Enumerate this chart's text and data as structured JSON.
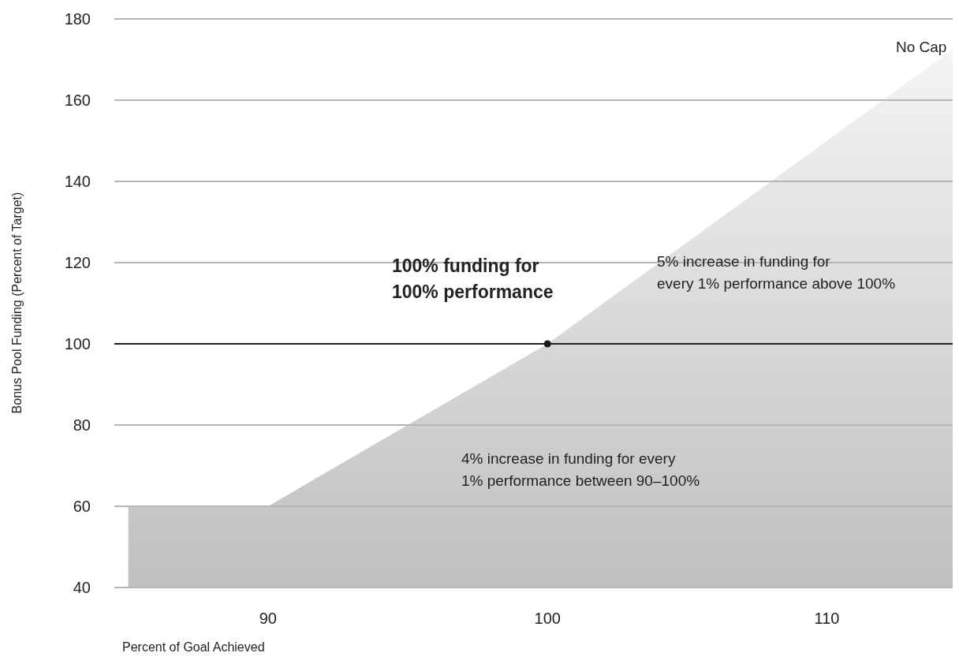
{
  "chart_data": {
    "type": "area",
    "xlabel": "Percent of Goal Achieved",
    "ylabel": "Bonus Pool Funding (Percent of Target)",
    "xlim": [
      84.5,
      114.5
    ],
    "xticks": [
      90,
      100,
      110
    ],
    "ylim": [
      40,
      180
    ],
    "yticks": [
      40,
      60,
      80,
      100,
      120,
      140,
      160,
      180
    ],
    "grid": "y",
    "series": [
      {
        "color": "#b8b8ba",
        "x": [
          85,
          90,
          100,
          114.5
        ],
        "values": [
          60,
          60,
          100,
          172.5
        ]
      },
      {
        "type": "scatter",
        "color": "#1a1a1a",
        "marker": "circle",
        "x": [
          100
        ],
        "values": [
          100
        ]
      }
    ],
    "ref_lines": [
      {
        "axis": "y",
        "value": 100,
        "color": "#222222"
      }
    ],
    "annotations": [
      "100% funding for\n100% performance",
      "5% increase in funding for\nevery 1% performance above 100%",
      "4% increase in funding for every\n1% performance between 90–100%",
      "No Cap"
    ]
  }
}
